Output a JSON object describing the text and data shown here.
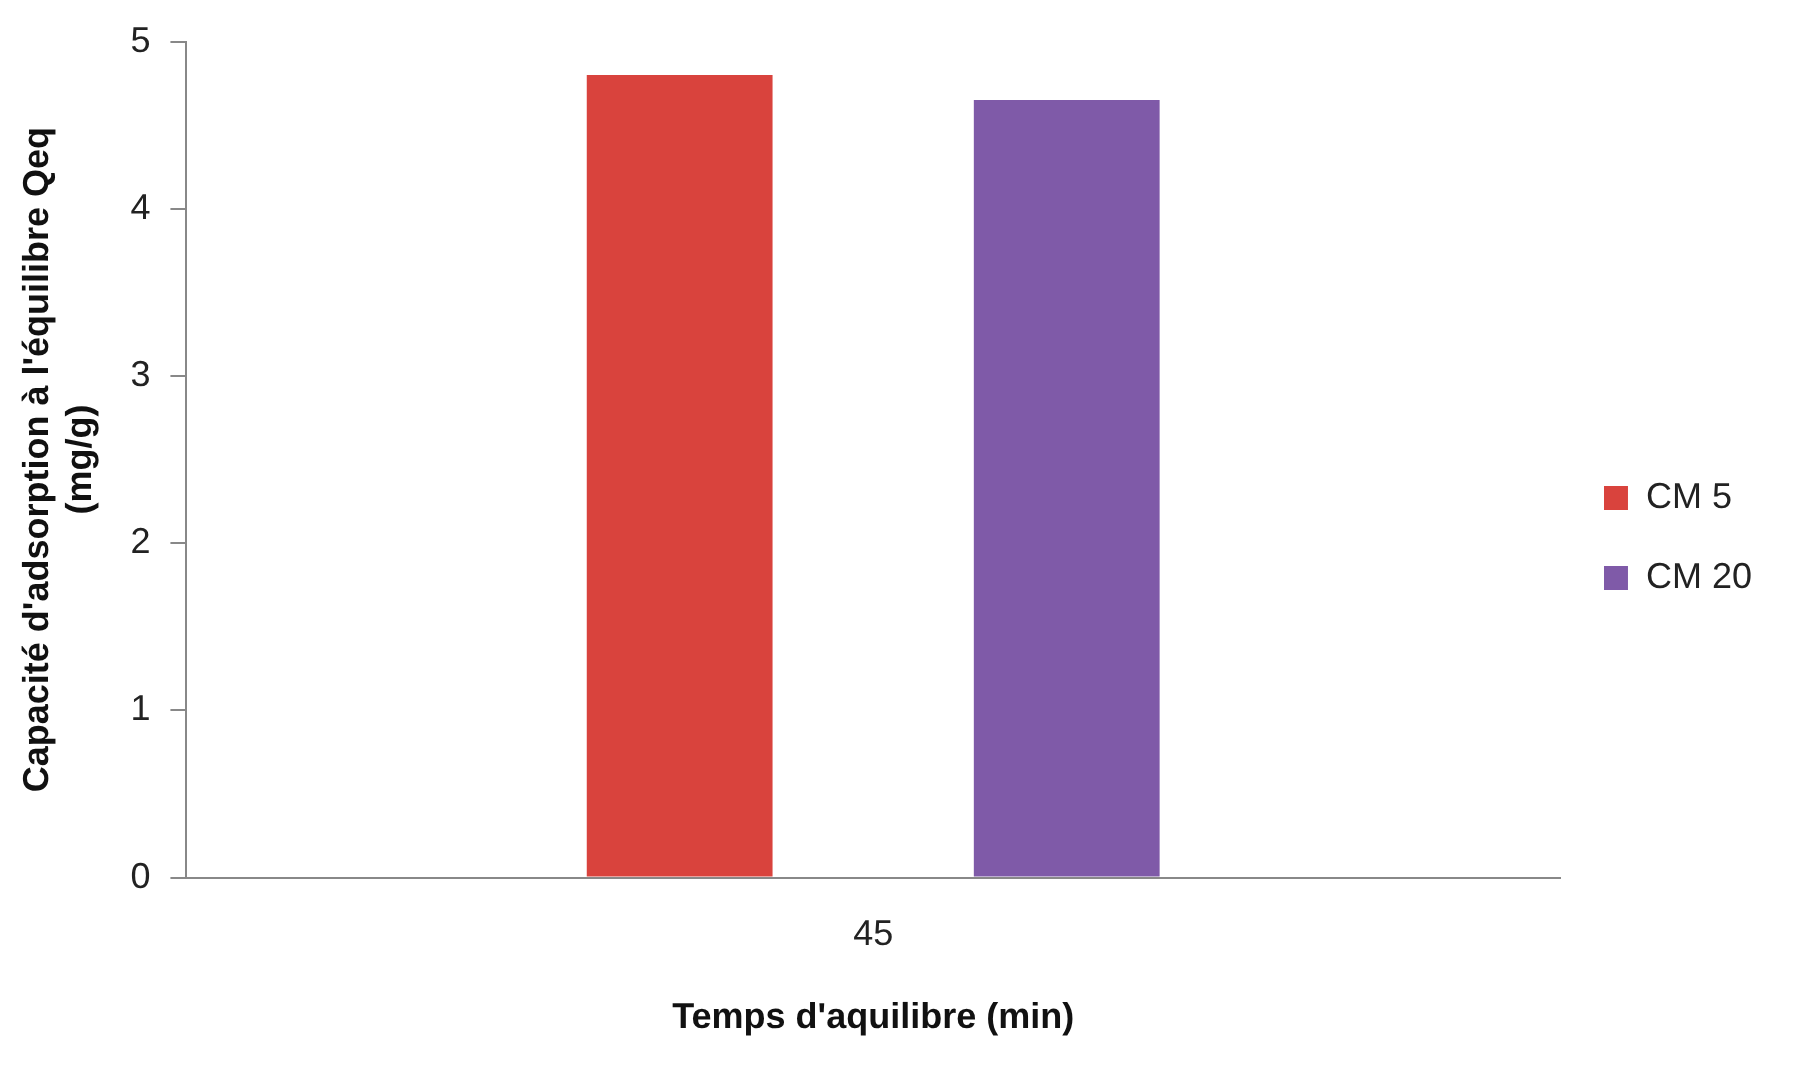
{
  "chart_data": {
    "type": "bar",
    "categories": [
      "45"
    ],
    "series": [
      {
        "name": "CM 5",
        "color": "#d9433d",
        "values": [
          4.8
        ]
      },
      {
        "name": "CM 20",
        "color": "#7f5aa8",
        "values": [
          4.65
        ]
      }
    ],
    "xlabel": "Temps d'aquilibre (min)",
    "ylabel": "Capacité d'adsorption à l'équilibre Qeq\n(mg/g)",
    "ylim": [
      0,
      5
    ],
    "yticks": [
      0,
      1,
      2,
      3,
      4,
      5
    ],
    "grid": false,
    "legend": "right"
  }
}
